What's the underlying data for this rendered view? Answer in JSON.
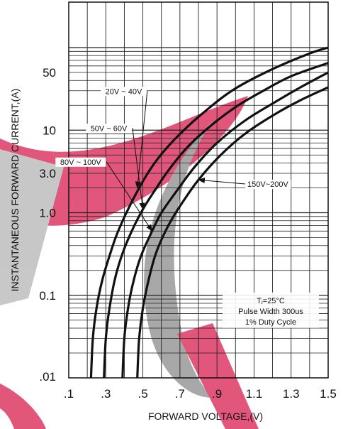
{
  "chart_data": {
    "type": "line",
    "title": "",
    "xlabel": "FORWARD VOLTAGE,(V)",
    "ylabel": "INSTANTANEOUS FORWARD CURRENT,(A)",
    "x_scale": "linear",
    "y_scale": "log",
    "xlim": [
      0.1,
      1.5
    ],
    "ylim": [
      0.01,
      100
    ],
    "x_ticks": [
      {
        "value": 0.1,
        "label": ".1"
      },
      {
        "value": 0.3,
        "label": ".3"
      },
      {
        "value": 0.5,
        "label": ".5"
      },
      {
        "value": 0.7,
        "label": ".7"
      },
      {
        "value": 0.9,
        "label": ".9"
      },
      {
        "value": 1.1,
        "label": "1.1"
      },
      {
        "value": 1.3,
        "label": "1.3"
      },
      {
        "value": 1.5,
        "label": "1.5"
      }
    ],
    "y_ticks": [
      {
        "value": 0.01,
        "label": ".01"
      },
      {
        "value": 0.1,
        "label": "0.1"
      },
      {
        "value": 1,
        "label": "1.0"
      },
      {
        "value": 3,
        "label": "3.0"
      },
      {
        "value": 10,
        "label": "10"
      },
      {
        "value": 50,
        "label": "50"
      }
    ],
    "grid": true,
    "series": [
      {
        "name": "20V ~ 40V",
        "x": [
          0.22,
          0.23,
          0.25,
          0.28,
          0.32,
          0.36,
          0.42,
          0.5,
          0.58,
          0.7,
          0.85,
          1.0,
          1.2,
          1.4,
          1.5
        ],
        "y": [
          0.01,
          0.03,
          0.07,
          0.15,
          0.3,
          0.55,
          1.1,
          2.4,
          4.5,
          9,
          18,
          32,
          55,
          85,
          100
        ]
      },
      {
        "name": "50V ~ 60V",
        "x": [
          0.29,
          0.3,
          0.32,
          0.35,
          0.39,
          0.44,
          0.5,
          0.56,
          0.64,
          0.74,
          0.86,
          1.0,
          1.15,
          1.3,
          1.5
        ],
        "y": [
          0.01,
          0.03,
          0.07,
          0.16,
          0.32,
          0.6,
          1.1,
          1.8,
          3.3,
          6.2,
          11,
          19,
          30,
          45,
          65
        ]
      },
      {
        "name": "80V ~ 100V",
        "x": [
          0.39,
          0.4,
          0.42,
          0.45,
          0.49,
          0.55,
          0.6,
          0.68,
          0.78,
          0.9,
          1.05,
          1.2,
          1.35,
          1.5
        ],
        "y": [
          0.01,
          0.03,
          0.07,
          0.15,
          0.3,
          0.6,
          1.0,
          1.8,
          3.6,
          7,
          13,
          21,
          33,
          50
        ]
      },
      {
        "name": "150V~200V",
        "x": [
          0.47,
          0.48,
          0.5,
          0.53,
          0.57,
          0.63,
          0.7,
          0.8,
          0.92,
          1.05,
          1.2,
          1.35,
          1.5
        ],
        "y": [
          0.01,
          0.03,
          0.07,
          0.15,
          0.32,
          0.65,
          1.2,
          2.5,
          5,
          9,
          15,
          23,
          33
        ]
      }
    ],
    "annotations": [
      {
        "text": "20V ~ 40V",
        "x": 0.52,
        "y": 28
      },
      {
        "text": "50V ~ 60V",
        "x": 0.44,
        "y": 10
      },
      {
        "text": "80V ~ 100V",
        "x": 0.3,
        "y": 3.9
      },
      {
        "text": "150V~200V",
        "x": 1.06,
        "y": 2.1
      }
    ],
    "conditions": [
      "Tⱼ=25°C",
      "Pulse Width 300us",
      "1% Duty Cycle"
    ],
    "colors": {
      "curve": "#111111",
      "grid": "#222222",
      "watermark_red": "#d81e4e",
      "watermark_gray": "#8c8c8c"
    }
  }
}
